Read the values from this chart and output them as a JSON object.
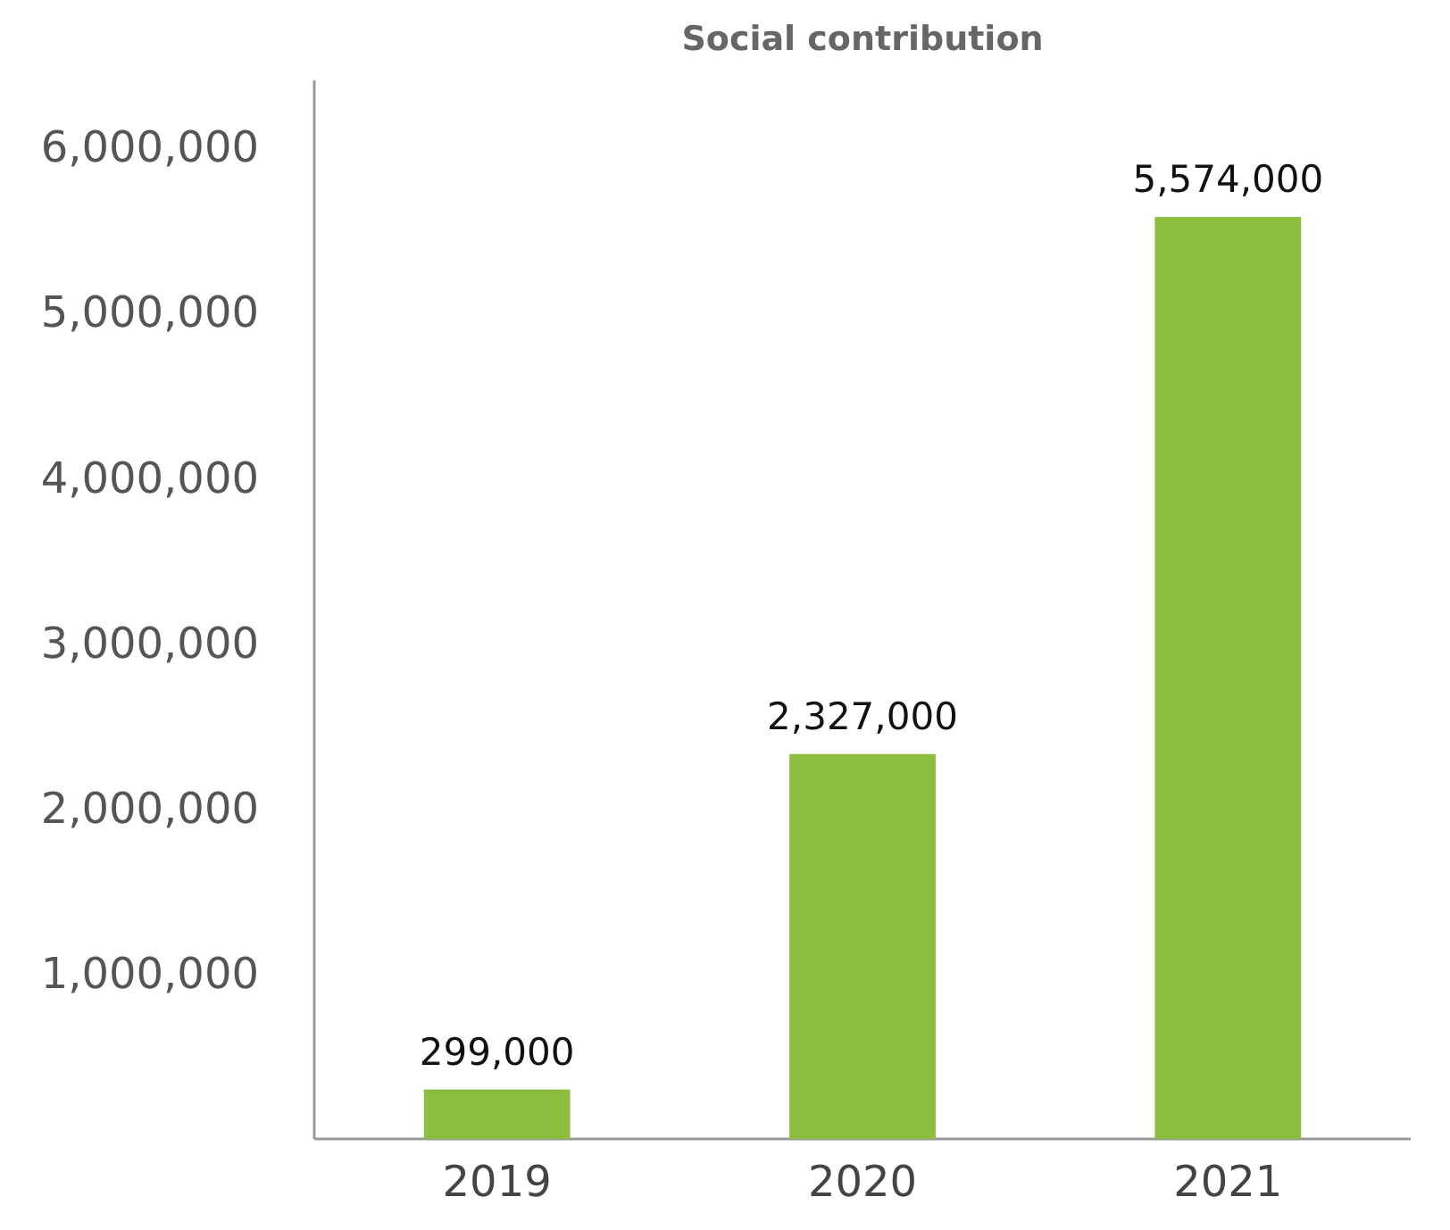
{
  "chart_data": {
    "type": "bar",
    "title": "Social contribution",
    "categories": [
      "2019",
      "2020",
      "2021"
    ],
    "values": [
      299000,
      2327000,
      5574000
    ],
    "color": "#8bbd3f",
    "ylim": [
      0,
      6400000
    ],
    "yticks": [
      {
        "value": 1000000,
        "label": "1,000,000"
      },
      {
        "value": 2000000,
        "label": "2,000,000"
      },
      {
        "value": 3000000,
        "label": "3,000,000"
      },
      {
        "value": 4000000,
        "label": "4,000,000"
      },
      {
        "value": 5000000,
        "label": "5,000,000"
      },
      {
        "value": 6000000,
        "label": "6,000,000"
      }
    ],
    "value_labels": [
      "299,000",
      "2,327,000",
      "5,574,000"
    ],
    "grid": false
  }
}
